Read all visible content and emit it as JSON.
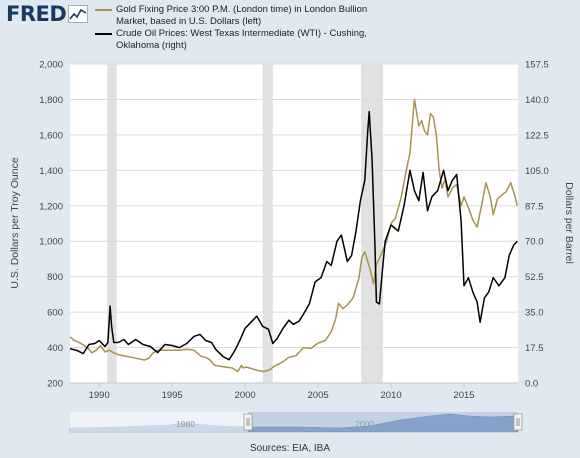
{
  "header": {
    "logo_text": "FRED",
    "logo_icon": "line-graph-icon"
  },
  "legend": {
    "gold_label": "Gold Fixing Price 3:00 P.M. (London time) in London Bullion Market, based in U.S. Dollars (left)",
    "oil_label": "Crude Oil Prices: West Texas Intermediate (WTI) - Cushing, Oklahoma (right)"
  },
  "footer": {
    "source": "Sources: EIA, IBA"
  },
  "navigator": {
    "labels": [
      "1980",
      "2000"
    ]
  },
  "colors": {
    "gold": "#a8924f",
    "oil": "#000000",
    "recession": "#e1e1e1",
    "grid": "#dcdcdc",
    "navigator": "#8ea8cf",
    "logo": "#173a5e"
  },
  "chart_data": {
    "type": "line",
    "title": "",
    "xlabel": "",
    "ylabel_left": "U.S. Dollars per Troy Ounce",
    "ylabel_right": "Dollars per Barrel",
    "xlim": [
      1988.0,
      2018.7
    ],
    "ylim_left": [
      200,
      2000
    ],
    "ylim_right": [
      0,
      157.5
    ],
    "x_ticks": [
      1990,
      1995,
      2000,
      2005,
      2010,
      2015
    ],
    "y_ticks_left": [
      "200",
      "400",
      "600",
      "800",
      "1,000",
      "1,200",
      "1,400",
      "1,600",
      "1,800",
      "2,000"
    ],
    "y_ticks_right": [
      "0.0",
      "17.5",
      "35.0",
      "52.5",
      "70.0",
      "87.5",
      "105.0",
      "122.5",
      "140.0",
      "157.5"
    ],
    "grid": true,
    "legend_position": "top",
    "recessions": [
      [
        1990.55,
        1991.2
      ],
      [
        2001.2,
        2001.9
      ],
      [
        2007.95,
        2009.45
      ]
    ],
    "series": [
      {
        "name": "Gold Fixing Price 3:00 P.M. (London time) in London Bullion Market, based in U.S. Dollars (left)",
        "axis": "left",
        "x": [
          1988.0,
          1988.3,
          1988.6,
          1988.9,
          1989.2,
          1989.5,
          1989.8,
          1990.1,
          1990.4,
          1990.7,
          1991.0,
          1991.3,
          1991.6,
          1991.9,
          1992.2,
          1992.5,
          1992.8,
          1993.1,
          1993.4,
          1993.7,
          1994.0,
          1994.5,
          1995.0,
          1995.5,
          1996.0,
          1996.5,
          1997.0,
          1997.3,
          1997.6,
          1997.9,
          1998.3,
          1998.7,
          1999.1,
          1999.5,
          1999.75,
          1999.85,
          2000.1,
          2000.5,
          2000.9,
          2001.3,
          2001.7,
          2002.0,
          2002.5,
          2003.0,
          2003.5,
          2004.0,
          2004.5,
          2005.0,
          2005.5,
          2005.9,
          2006.2,
          2006.4,
          2006.7,
          2007.0,
          2007.4,
          2007.8,
          2008.0,
          2008.2,
          2008.5,
          2008.8,
          2009.0,
          2009.3,
          2009.7,
          2010.0,
          2010.3,
          2010.7,
          2011.0,
          2011.3,
          2011.6,
          2011.7,
          2011.9,
          2012.1,
          2012.3,
          2012.5,
          2012.7,
          2012.9,
          2013.1,
          2013.3,
          2013.5,
          2013.7,
          2013.9,
          2014.2,
          2014.5,
          2014.8,
          2015.0,
          2015.3,
          2015.6,
          2015.9,
          2016.2,
          2016.5,
          2016.8,
          2017.0,
          2017.3,
          2017.6,
          2017.9,
          2018.2,
          2018.5,
          2018.65
        ],
        "values": [
          460,
          440,
          430,
          415,
          400,
          370,
          385,
          410,
          375,
          385,
          370,
          360,
          355,
          350,
          345,
          340,
          335,
          330,
          340,
          370,
          385,
          385,
          385,
          385,
          390,
          385,
          350,
          345,
          330,
          300,
          295,
          290,
          285,
          265,
          300,
          285,
          290,
          280,
          270,
          265,
          275,
          295,
          315,
          345,
          355,
          400,
          395,
          425,
          440,
          490,
          560,
          650,
          620,
          640,
          680,
          790,
          910,
          940,
          860,
          760,
          870,
          920,
          1000,
          1100,
          1130,
          1250,
          1380,
          1500,
          1800,
          1750,
          1650,
          1680,
          1620,
          1600,
          1720,
          1700,
          1600,
          1400,
          1300,
          1350,
          1250,
          1300,
          1320,
          1200,
          1250,
          1190,
          1120,
          1080,
          1200,
          1330,
          1250,
          1150,
          1240,
          1260,
          1280,
          1330,
          1250,
          1200
        ]
      },
      {
        "name": "Crude Oil Prices: West Texas Intermediate (WTI) - Cushing, Oklahoma (right)",
        "axis": "right",
        "x": [
          1988.0,
          1988.5,
          1988.9,
          1989.3,
          1989.7,
          1990.0,
          1990.4,
          1990.6,
          1990.75,
          1990.85,
          1991.0,
          1991.3,
          1991.7,
          1992.0,
          1992.5,
          1993.0,
          1993.5,
          1994.0,
          1994.5,
          1995.0,
          1995.5,
          1996.0,
          1996.5,
          1996.9,
          1997.3,
          1997.7,
          1998.0,
          1998.5,
          1998.9,
          1999.3,
          1999.7,
          2000.0,
          2000.4,
          2000.8,
          2001.2,
          2001.6,
          2001.9,
          2002.2,
          2002.6,
          2003.0,
          2003.3,
          2003.7,
          2004.0,
          2004.4,
          2004.8,
          2005.2,
          2005.6,
          2005.9,
          2006.3,
          2006.6,
          2007.0,
          2007.3,
          2007.6,
          2007.9,
          2008.2,
          2008.4,
          2008.5,
          2008.7,
          2008.9,
          2009.0,
          2009.2,
          2009.4,
          2009.6,
          2010.0,
          2010.5,
          2010.9,
          2011.3,
          2011.6,
          2011.9,
          2012.2,
          2012.5,
          2012.8,
          2013.2,
          2013.6,
          2013.9,
          2014.2,
          2014.5,
          2014.8,
          2015.0,
          2015.3,
          2015.6,
          2015.9,
          2016.1,
          2016.4,
          2016.7,
          2017.0,
          2017.4,
          2017.8,
          2018.1,
          2018.4,
          2018.65
        ],
        "values": [
          17.0,
          16.0,
          14.5,
          19.0,
          19.5,
          21.0,
          18.0,
          20.0,
          38.0,
          28.0,
          20.0,
          20.0,
          21.5,
          19.0,
          21.5,
          19.0,
          18.0,
          15.0,
          19.0,
          18.5,
          17.5,
          19.5,
          23.0,
          24.0,
          21.0,
          20.0,
          16.5,
          13.0,
          11.5,
          16.0,
          22.0,
          27.0,
          30.0,
          33.0,
          28.0,
          26.5,
          19.5,
          22.0,
          27.0,
          31.0,
          29.0,
          30.5,
          34.0,
          39.0,
          50.0,
          52.0,
          60.0,
          58.0,
          70.0,
          73.0,
          60.0,
          63.0,
          75.0,
          90.0,
          100.0,
          124.0,
          134.0,
          110.0,
          67.0,
          40.0,
          39.0,
          55.0,
          70.0,
          78.0,
          75.0,
          88.0,
          105.0,
          95.0,
          90.0,
          104.0,
          85.0,
          92.0,
          95.0,
          105.0,
          95.0,
          100.0,
          103.0,
          80.0,
          48.0,
          52.0,
          45.0,
          40.0,
          30.0,
          42.0,
          45.0,
          52.0,
          48.0,
          52.0,
          63.0,
          68.0,
          70.0
        ]
      }
    ]
  }
}
